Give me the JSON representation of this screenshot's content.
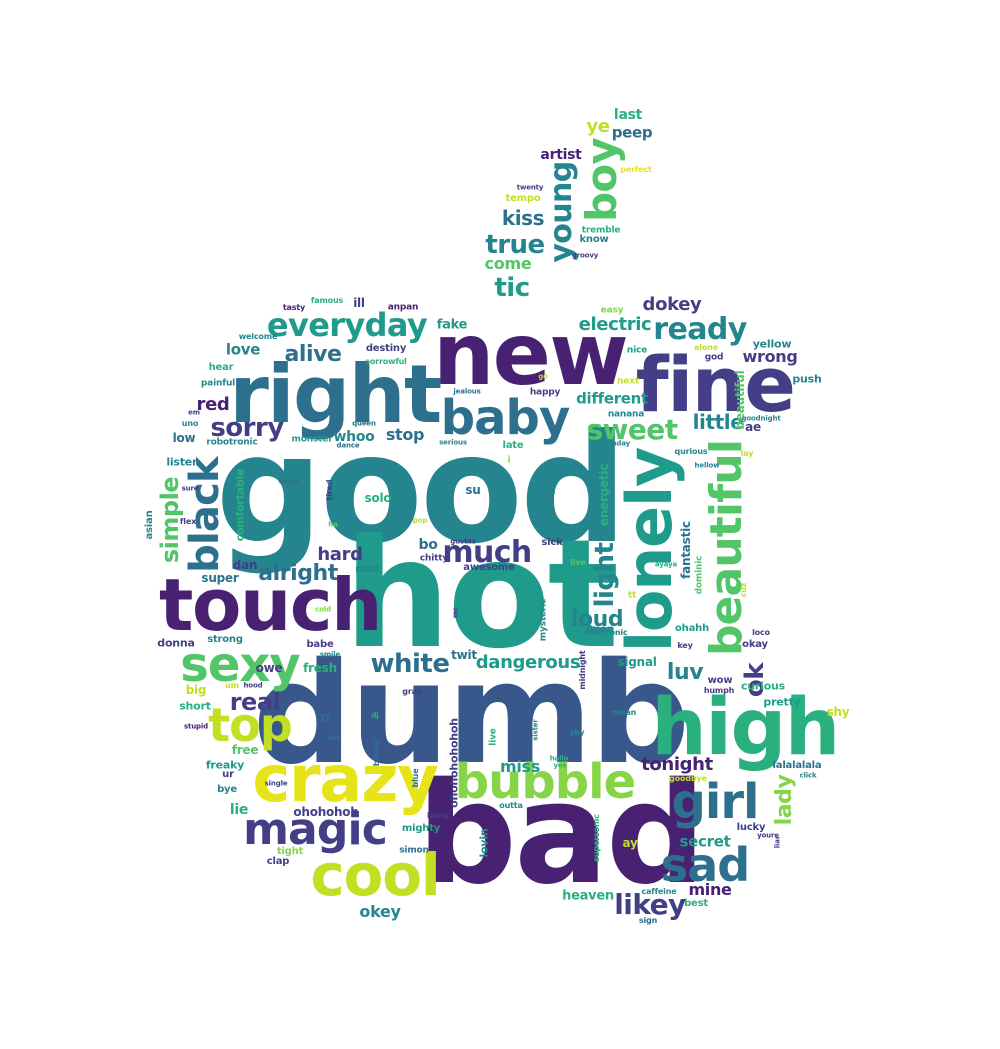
{
  "palette": {
    "dark_purple": "#482173",
    "indigo": "#433e85",
    "blue": "#38588c",
    "steel_blue": "#2d708e",
    "teal": "#25858e",
    "sea_green": "#1e9b8a",
    "green": "#2ab07f",
    "light_green": "#52c569",
    "lime": "#86d549",
    "yellow_green": "#c2df23",
    "yellow": "#e6e419"
  },
  "words": [
    {
      "text": "good"
    },
    {
      "text": "hot"
    },
    {
      "text": "dumb"
    },
    {
      "text": "bad"
    },
    {
      "text": "new"
    },
    {
      "text": "right"
    },
    {
      "text": "fine"
    },
    {
      "text": "touch"
    },
    {
      "text": "lonely"
    },
    {
      "text": "high"
    },
    {
      "text": "crazy"
    },
    {
      "text": "baby"
    },
    {
      "text": "beautiful"
    },
    {
      "text": "cool"
    },
    {
      "text": "bubble"
    },
    {
      "text": "sexy"
    },
    {
      "text": "magic"
    },
    {
      "text": "girl"
    },
    {
      "text": "black"
    },
    {
      "text": "top"
    },
    {
      "text": "sad"
    },
    {
      "text": "everyday"
    },
    {
      "text": "boy"
    },
    {
      "text": "ready"
    },
    {
      "text": "young"
    },
    {
      "text": "much"
    },
    {
      "text": "sweet"
    },
    {
      "text": "sorry"
    },
    {
      "text": "white"
    },
    {
      "text": "true"
    },
    {
      "text": "likey"
    },
    {
      "text": "alright"
    },
    {
      "text": "tic"
    },
    {
      "text": "light"
    },
    {
      "text": "simple"
    },
    {
      "text": "real"
    },
    {
      "text": "ok"
    },
    {
      "text": "tonight"
    },
    {
      "text": "alive"
    },
    {
      "text": "little"
    },
    {
      "text": "kiss"
    },
    {
      "text": "loud"
    },
    {
      "text": "luv"
    },
    {
      "text": "lady"
    },
    {
      "text": "electric"
    },
    {
      "text": "dangerous"
    },
    {
      "text": "come"
    },
    {
      "text": "dokey"
    },
    {
      "text": "hard"
    },
    {
      "text": "red"
    },
    {
      "text": "wrong"
    },
    {
      "text": "ye"
    },
    {
      "text": "stop"
    },
    {
      "text": "miss"
    },
    {
      "text": "mine"
    },
    {
      "text": "okey"
    },
    {
      "text": "secret"
    },
    {
      "text": "different"
    },
    {
      "text": "peep"
    },
    {
      "text": "last"
    },
    {
      "text": "artist"
    },
    {
      "text": "love"
    },
    {
      "text": "bo"
    },
    {
      "text": "heaven"
    },
    {
      "text": "beautiful_sub"
    },
    {
      "text": "fake"
    },
    {
      "text": "ohohohoh"
    },
    {
      "text": "whoo"
    },
    {
      "text": "solo"
    },
    {
      "text": "su"
    },
    {
      "text": "fantastic"
    },
    {
      "text": "dan"
    },
    {
      "text": "energetic"
    },
    {
      "text": "super"
    },
    {
      "text": "fresh"
    },
    {
      "text": "twit"
    },
    {
      "text": "signal"
    },
    {
      "text": "comfortable"
    },
    {
      "text": "lie"
    },
    {
      "text": "low"
    },
    {
      "text": "owe"
    },
    {
      "text": "free"
    },
    {
      "text": "short"
    },
    {
      "text": "big"
    },
    {
      "text": "freaky"
    },
    {
      "text": "shy"
    },
    {
      "text": "lalalalala"
    },
    {
      "text": "pretty"
    },
    {
      "text": "curious"
    },
    {
      "text": "yellow"
    },
    {
      "text": "push"
    },
    {
      "text": "ae"
    },
    {
      "text": "listen"
    },
    {
      "text": "donna"
    },
    {
      "text": "strong"
    },
    {
      "text": "babe"
    },
    {
      "text": "mad"
    },
    {
      "text": "sick"
    },
    {
      "text": "huh"
    },
    {
      "text": "lovin"
    },
    {
      "text": "mighty"
    },
    {
      "text": "open"
    },
    {
      "text": "ay"
    },
    {
      "text": "lucky"
    },
    {
      "text": "wow"
    },
    {
      "text": "okay"
    },
    {
      "text": "ohahh"
    },
    {
      "text": "n"
    },
    {
      "text": "asian"
    },
    {
      "text": "hear"
    },
    {
      "text": "destiny"
    },
    {
      "text": "tempo"
    },
    {
      "text": "know"
    },
    {
      "text": "tremble"
    },
    {
      "text": "easy"
    },
    {
      "text": "nice"
    },
    {
      "text": "god"
    },
    {
      "text": "next"
    },
    {
      "text": "happy"
    },
    {
      "text": "nanana"
    },
    {
      "text": "late"
    },
    {
      "text": "chitty"
    },
    {
      "text": "awesome"
    },
    {
      "text": "bye"
    },
    {
      "text": "ur"
    },
    {
      "text": "clap"
    },
    {
      "text": "simon"
    },
    {
      "text": "tight"
    },
    {
      "text": "mean"
    },
    {
      "text": "best"
    },
    {
      "text": "sign"
    },
    {
      "text": "caffeine"
    },
    {
      "text": "goodbye"
    },
    {
      "text": "click"
    },
    {
      "text": "youre"
    },
    {
      "text": "liar"
    },
    {
      "text": "mysteric"
    },
    {
      "text": "midnight"
    },
    {
      "text": "electronic"
    },
    {
      "text": "humph"
    },
    {
      "text": "key"
    },
    {
      "text": "loco"
    },
    {
      "text": "tt"
    },
    {
      "text": "ayaya"
    },
    {
      "text": "dominic"
    },
    {
      "text": "cuz"
    },
    {
      "text": "live"
    },
    {
      "text": "qurious"
    },
    {
      "text": "hellow"
    },
    {
      "text": "birthday"
    },
    {
      "text": "lay"
    },
    {
      "text": "jealous"
    },
    {
      "text": "go"
    },
    {
      "text": "alone"
    },
    {
      "text": "goodnight"
    },
    {
      "text": "serious"
    },
    {
      "text": "monster"
    },
    {
      "text": "dance"
    },
    {
      "text": "queen"
    },
    {
      "text": "tired"
    },
    {
      "text": "pop"
    },
    {
      "text": "gustas"
    },
    {
      "text": "ha"
    },
    {
      "text": "seoul"
    },
    {
      "text": "robotronic"
    },
    {
      "text": "painful"
    },
    {
      "text": "uno"
    },
    {
      "text": "welcome"
    },
    {
      "text": "tasty"
    },
    {
      "text": "famous"
    },
    {
      "text": "ill"
    },
    {
      "text": "anpan"
    },
    {
      "text": "sorrowful"
    },
    {
      "text": "groovy"
    },
    {
      "text": "twenty"
    },
    {
      "text": "perfect"
    },
    {
      "text": "cold"
    },
    {
      "text": "smile"
    },
    {
      "text": "hood"
    },
    {
      "text": "um"
    },
    {
      "text": "gray"
    },
    {
      "text": "stupid"
    },
    {
      "text": "dj"
    },
    {
      "text": "left"
    },
    {
      "text": "single"
    },
    {
      "text": "bionic"
    },
    {
      "text": "blue"
    },
    {
      "text": "bang"
    },
    {
      "text": "outta"
    },
    {
      "text": "ohohohohohoh"
    },
    {
      "text": "live2"
    },
    {
      "text": "sister"
    },
    {
      "text": "hallo"
    },
    {
      "text": "yes"
    },
    {
      "text": "sky"
    },
    {
      "text": "supersonic"
    },
    {
      "text": "mr"
    },
    {
      "text": "flex"
    },
    {
      "text": "sure"
    },
    {
      "text": "em"
    },
    {
      "text": "i"
    }
  ]
}
